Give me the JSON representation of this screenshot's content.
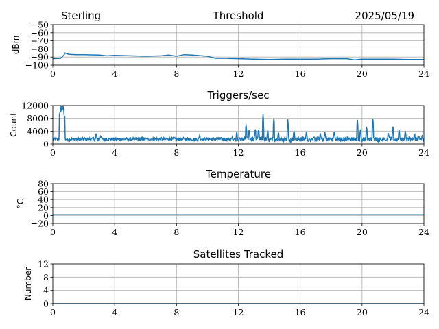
{
  "header": {
    "station": "Sterling",
    "date": "2025/05/19"
  },
  "chart_data": [
    {
      "type": "line",
      "title": "Threshold",
      "xlabel": "",
      "ylabel": "dBm",
      "xlim": [
        0,
        24
      ],
      "ylim": [
        -100,
        -50
      ],
      "xticks": [
        "0",
        "4",
        "8",
        "12",
        "16",
        "20",
        "24"
      ],
      "yticks": [
        "−100",
        "−90",
        "−80",
        "−70",
        "−60",
        "−50"
      ],
      "grid": true,
      "series": [
        {
          "color": "#1f77b4",
          "x": [
            0,
            0.5,
            0.7,
            0.8,
            1.0,
            1.5,
            2.0,
            3.0,
            3.5,
            4.0,
            5.0,
            6.0,
            7.0,
            7.5,
            8.0,
            8.5,
            9.0,
            10.0,
            10.5,
            11.0,
            12.0,
            13.0,
            14.0,
            15.0,
            16.0,
            17.0,
            18.0,
            19.0,
            19.5,
            20.0,
            21.0,
            22.0,
            23.0,
            24.0
          ],
          "y": [
            -92,
            -91.5,
            -88,
            -85,
            -86.5,
            -87,
            -87,
            -87.5,
            -88.5,
            -88,
            -88.5,
            -89,
            -88.5,
            -87.5,
            -89,
            -87,
            -87.5,
            -89,
            -91.5,
            -91.5,
            -92,
            -92.5,
            -93,
            -92.5,
            -92.5,
            -92.5,
            -92,
            -92,
            -93.5,
            -92.5,
            -92.5,
            -92.5,
            -93,
            -93
          ]
        }
      ]
    },
    {
      "type": "line",
      "title": "Triggers/sec",
      "xlabel": "",
      "ylabel": "Count",
      "xlim": [
        0,
        24
      ],
      "ylim": [
        0,
        12000
      ],
      "xticks": [
        "0",
        "4",
        "8",
        "12",
        "16",
        "20",
        "24"
      ],
      "yticks": [
        "0",
        "4000",
        "8000",
        "12000"
      ],
      "grid": true,
      "series": [
        {
          "color": "#1f77b4",
          "baseline": 1500,
          "noise": 500,
          "spikes": [
            {
              "x": 0.55,
              "y": 12500,
              "w": 0.15
            },
            {
              "x": 0.65,
              "y": 12500,
              "w": 0.15
            },
            {
              "x": 2.8,
              "y": 3500
            },
            {
              "x": 3.1,
              "y": 2800
            },
            {
              "x": 9.5,
              "y": 3200
            },
            {
              "x": 11.9,
              "y": 4200
            },
            {
              "x": 12.5,
              "y": 6500
            },
            {
              "x": 12.7,
              "y": 5200
            },
            {
              "x": 13.1,
              "y": 4800
            },
            {
              "x": 13.3,
              "y": 5000
            },
            {
              "x": 13.6,
              "y": 10000
            },
            {
              "x": 13.9,
              "y": 4500
            },
            {
              "x": 14.3,
              "y": 8500
            },
            {
              "x": 14.6,
              "y": 4200
            },
            {
              "x": 15.2,
              "y": 8000
            },
            {
              "x": 15.6,
              "y": 4500
            },
            {
              "x": 16.4,
              "y": 4000
            },
            {
              "x": 17.3,
              "y": 3500
            },
            {
              "x": 17.6,
              "y": 3800
            },
            {
              "x": 18.2,
              "y": 4000
            },
            {
              "x": 19.7,
              "y": 8000
            },
            {
              "x": 19.9,
              "y": 4800
            },
            {
              "x": 20.3,
              "y": 6000
            },
            {
              "x": 20.7,
              "y": 9000
            },
            {
              "x": 21.7,
              "y": 3800
            },
            {
              "x": 22.0,
              "y": 6000
            },
            {
              "x": 22.4,
              "y": 5000
            },
            {
              "x": 22.8,
              "y": 4200
            },
            {
              "x": 23.4,
              "y": 3500
            },
            {
              "x": 23.9,
              "y": 3000
            }
          ]
        }
      ]
    },
    {
      "type": "line",
      "title": "Temperature",
      "xlabel": "",
      "ylabel": "°C",
      "xlim": [
        0,
        24
      ],
      "ylim": [
        -20,
        80
      ],
      "xticks": [
        "0",
        "4",
        "8",
        "12",
        "16",
        "20",
        "24"
      ],
      "yticks": [
        "−20",
        "0",
        "20",
        "40",
        "60",
        "80"
      ],
      "grid": true,
      "series": [
        {
          "color": "#1f77b4",
          "x": [
            0,
            24
          ],
          "y": [
            2,
            2
          ]
        }
      ]
    },
    {
      "type": "line",
      "title": "Satellites Tracked",
      "xlabel": "",
      "ylabel": "Number",
      "xlim": [
        0,
        24
      ],
      "ylim": [
        0,
        12
      ],
      "xticks": [
        "0",
        "4",
        "8",
        "12",
        "16",
        "20",
        "24"
      ],
      "yticks": [
        "0",
        "4",
        "8",
        "12"
      ],
      "grid": true,
      "series": [
        {
          "color": "#1f77b4",
          "x": [
            0,
            24
          ],
          "y": [
            0,
            0
          ]
        }
      ]
    }
  ]
}
